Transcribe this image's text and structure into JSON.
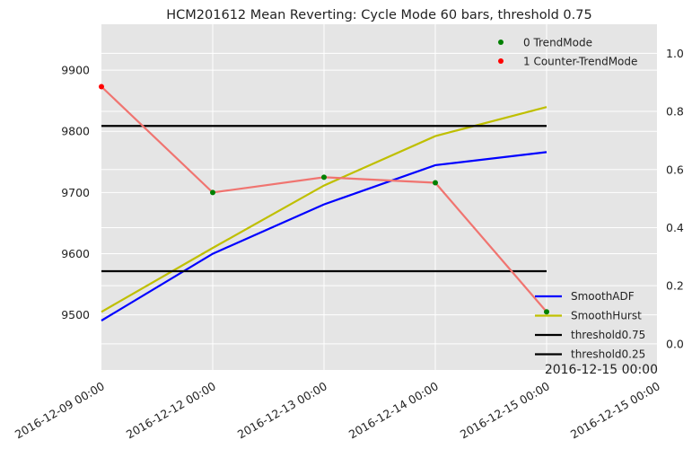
{
  "chart_data": {
    "type": "line",
    "title": "HCM201612 Mean Reverting: Cycle Mode 60 bars, threshold 0.75",
    "grid": true,
    "x_categories": [
      "2016-12-09 00:00",
      "2016-12-12 00:00",
      "2016-12-13 00:00",
      "2016-12-14 00:00",
      "2016-12-15 00:00",
      "2016-12-15 00:00"
    ],
    "corner_label": "2016-12-15 00:00",
    "left_axis": {
      "ylim": [
        9410,
        9975
      ],
      "ticks": [
        9500,
        9600,
        9700,
        9800,
        9900
      ]
    },
    "right_axis": {
      "ylim": [
        -0.09,
        1.1
      ],
      "ticks": [
        "0.0",
        "0.2",
        "0.4",
        "0.6",
        "0.8",
        "1.0"
      ]
    },
    "price_series": {
      "color": "#f07470",
      "x": [
        0,
        1,
        2,
        3,
        4
      ],
      "values": [
        9873,
        9700,
        9725,
        9716,
        9505
      ],
      "modes": [
        1,
        0,
        0,
        0,
        0
      ]
    },
    "mode_legend": [
      {
        "label": "0 TrendMode",
        "color": "#008000"
      },
      {
        "label": "1 Counter-TrendMode",
        "color": "#ff0000"
      }
    ],
    "line_legend": [
      {
        "label": "SmoothADF",
        "color": "#0000ff"
      },
      {
        "label": "SmoothHurst",
        "color": "#bfbf00"
      },
      {
        "label": "threshold0.75",
        "color": "#000000"
      },
      {
        "label": "threshold0.25",
        "color": "#000000"
      }
    ],
    "series": [
      {
        "name": "SmoothADF",
        "color": "#0000ff",
        "x": [
          0,
          1,
          2,
          3,
          4
        ],
        "values": [
          0.08,
          0.31,
          0.48,
          0.615,
          0.66
        ]
      },
      {
        "name": "SmoothHurst",
        "color": "#bfbf00",
        "x": [
          0,
          1,
          2,
          3,
          4
        ],
        "values": [
          0.11,
          0.33,
          0.545,
          0.715,
          0.815
        ]
      },
      {
        "name": "threshold0.75",
        "color": "#000000",
        "x": [
          0,
          4
        ],
        "values": [
          0.75,
          0.75
        ]
      },
      {
        "name": "threshold0.25",
        "color": "#000000",
        "x": [
          0,
          4
        ],
        "values": [
          0.25,
          0.25
        ]
      }
    ]
  }
}
